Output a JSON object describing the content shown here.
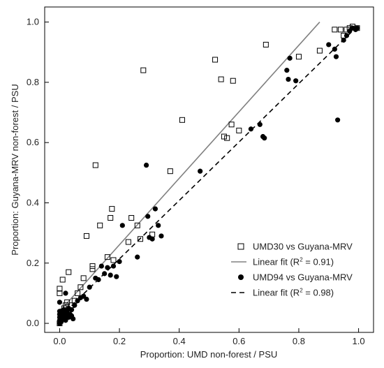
{
  "chart_data": {
    "type": "scatter",
    "xlabel": "Proportion: UMD non-forest / PSU",
    "ylabel": "Proportion: Guyana-MRV non-forest / PSU",
    "xlim": [
      -0.05,
      1.05
    ],
    "ylim": [
      -0.03,
      1.05
    ],
    "x_ticks": [
      "0.0",
      "0.2",
      "0.4",
      "0.6",
      "0.8",
      "1.0"
    ],
    "y_ticks": [
      "0.0",
      "0.2",
      "0.4",
      "0.6",
      "0.8",
      "1.0"
    ],
    "grid": false,
    "legend_position": "bottom-right",
    "series": [
      {
        "name": "UMD30 vs Guyana-MRV",
        "marker": "open-square",
        "color": "#000000",
        "points": [
          [
            0.0,
            0.0
          ],
          [
            0.003,
            0.01
          ],
          [
            0.005,
            0.02
          ],
          [
            0.008,
            0.03
          ],
          [
            0.01,
            0.015
          ],
          [
            0.012,
            0.04
          ],
          [
            0.015,
            0.05
          ],
          [
            0.02,
            0.06
          ],
          [
            0.025,
            0.07
          ],
          [
            0.0,
            0.1
          ],
          [
            0.0,
            0.115
          ],
          [
            0.01,
            0.145
          ],
          [
            0.03,
            0.17
          ],
          [
            0.04,
            0.06
          ],
          [
            0.05,
            0.075
          ],
          [
            0.06,
            0.1
          ],
          [
            0.07,
            0.12
          ],
          [
            0.08,
            0.15
          ],
          [
            0.09,
            0.29
          ],
          [
            0.11,
            0.18
          ],
          [
            0.11,
            0.19
          ],
          [
            0.12,
            0.525
          ],
          [
            0.135,
            0.325
          ],
          [
            0.16,
            0.22
          ],
          [
            0.17,
            0.35
          ],
          [
            0.175,
            0.38
          ],
          [
            0.18,
            0.21
          ],
          [
            0.23,
            0.27
          ],
          [
            0.24,
            0.35
          ],
          [
            0.26,
            0.325
          ],
          [
            0.27,
            0.28
          ],
          [
            0.28,
            0.84
          ],
          [
            0.31,
            0.295
          ],
          [
            0.37,
            0.505
          ],
          [
            0.41,
            0.675
          ],
          [
            0.52,
            0.875
          ],
          [
            0.54,
            0.81
          ],
          [
            0.55,
            0.62
          ],
          [
            0.56,
            0.615
          ],
          [
            0.575,
            0.66
          ],
          [
            0.58,
            0.805
          ],
          [
            0.6,
            0.64
          ],
          [
            0.69,
            0.925
          ],
          [
            0.8,
            0.885
          ],
          [
            0.87,
            0.905
          ],
          [
            0.92,
            0.975
          ],
          [
            0.94,
            0.975
          ],
          [
            0.95,
            0.955
          ],
          [
            0.96,
            0.975
          ],
          [
            0.97,
            0.98
          ],
          [
            0.98,
            0.985
          ],
          [
            0.995,
            0.98
          ]
        ]
      },
      {
        "name": "Linear fit (R",
        "name_sup": "2",
        "name_suffix": " = 0.91)",
        "style": "solid",
        "color": "#808080",
        "line": [
          [
            0.0,
            0.04
          ],
          [
            0.87,
            1.0
          ]
        ]
      },
      {
        "name": "UMD94 vs Guyana-MRV",
        "marker": "filled-circle",
        "color": "#000000",
        "points": [
          [
            0.0,
            0.0
          ],
          [
            0.0,
            0.01
          ],
          [
            0.0,
            0.02
          ],
          [
            0.0,
            0.03
          ],
          [
            0.0,
            0.04
          ],
          [
            0.005,
            0.005
          ],
          [
            0.008,
            0.015
          ],
          [
            0.01,
            0.025
          ],
          [
            0.012,
            0.035
          ],
          [
            0.015,
            0.045
          ],
          [
            0.018,
            0.02
          ],
          [
            0.02,
            0.01
          ],
          [
            0.02,
            0.03
          ],
          [
            0.025,
            0.04
          ],
          [
            0.03,
            0.02
          ],
          [
            0.03,
            0.05
          ],
          [
            0.035,
            0.03
          ],
          [
            0.04,
            0.025
          ],
          [
            0.04,
            0.045
          ],
          [
            0.045,
            0.015
          ],
          [
            0.0,
            0.07
          ],
          [
            0.02,
            0.1
          ],
          [
            0.05,
            0.06
          ],
          [
            0.06,
            0.075
          ],
          [
            0.07,
            0.085
          ],
          [
            0.08,
            0.09
          ],
          [
            0.09,
            0.08
          ],
          [
            0.1,
            0.12
          ],
          [
            0.12,
            0.15
          ],
          [
            0.13,
            0.145
          ],
          [
            0.14,
            0.19
          ],
          [
            0.15,
            0.165
          ],
          [
            0.16,
            0.185
          ],
          [
            0.17,
            0.16
          ],
          [
            0.18,
            0.19
          ],
          [
            0.19,
            0.155
          ],
          [
            0.2,
            0.205
          ],
          [
            0.21,
            0.325
          ],
          [
            0.26,
            0.22
          ],
          [
            0.29,
            0.525
          ],
          [
            0.295,
            0.355
          ],
          [
            0.3,
            0.285
          ],
          [
            0.31,
            0.28
          ],
          [
            0.32,
            0.38
          ],
          [
            0.33,
            0.325
          ],
          [
            0.34,
            0.29
          ],
          [
            0.47,
            0.505
          ],
          [
            0.64,
            0.645
          ],
          [
            0.67,
            0.66
          ],
          [
            0.68,
            0.62
          ],
          [
            0.685,
            0.615
          ],
          [
            0.76,
            0.84
          ],
          [
            0.765,
            0.81
          ],
          [
            0.77,
            0.88
          ],
          [
            0.79,
            0.805
          ],
          [
            0.9,
            0.925
          ],
          [
            0.92,
            0.91
          ],
          [
            0.925,
            0.885
          ],
          [
            0.93,
            0.675
          ],
          [
            0.95,
            0.94
          ],
          [
            0.96,
            0.955
          ],
          [
            0.97,
            0.97
          ],
          [
            0.98,
            0.98
          ],
          [
            0.99,
            0.975
          ],
          [
            0.995,
            0.98
          ]
        ]
      },
      {
        "name": "Linear fit (R",
        "name_sup": "2",
        "name_suffix": " = 0.98)",
        "style": "dashed",
        "color": "#000000",
        "line": [
          [
            0.0,
            0.02
          ],
          [
            0.99,
            0.98
          ]
        ]
      }
    ]
  }
}
